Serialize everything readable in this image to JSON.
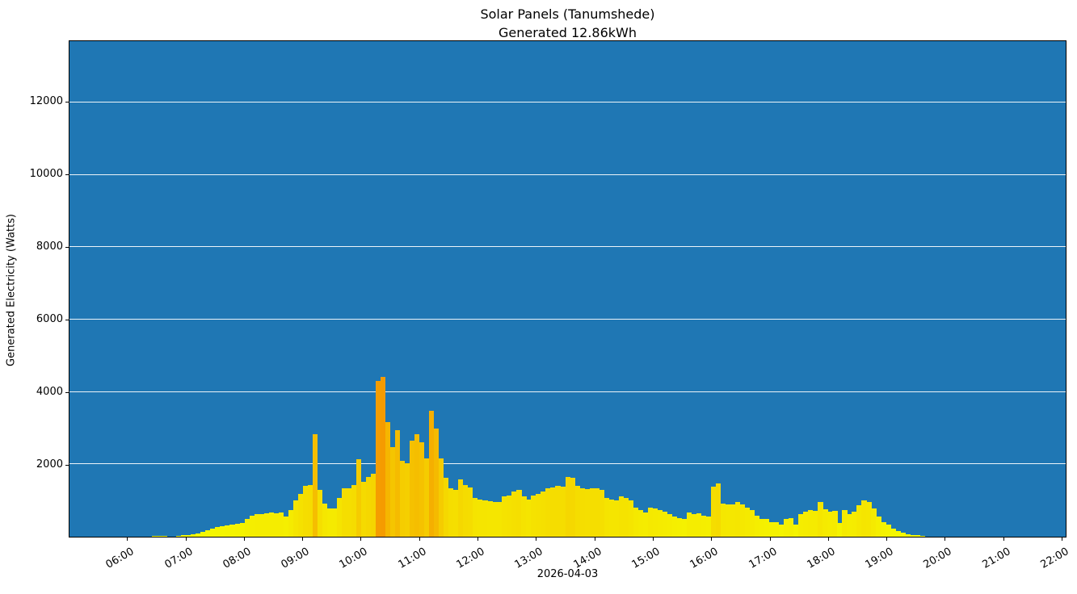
{
  "title": {
    "line1": "Solar Panels (Tanumshede)",
    "line2": "Generated 12.86kWh"
  },
  "chart_data": {
    "type": "bar",
    "title": "Solar Panels (Tanumshede) — Generated 12.86kWh",
    "xlabel": "2026-04-03",
    "ylabel": "Generated Electricity (Watts)",
    "x_start_hour": 5.0,
    "x_end_hour": 22.083,
    "interval_minutes": 5,
    "x_ticks": [
      {
        "hour": 6,
        "label": "06:00"
      },
      {
        "hour": 7,
        "label": "07:00"
      },
      {
        "hour": 8,
        "label": "08:00"
      },
      {
        "hour": 9,
        "label": "09:00"
      },
      {
        "hour": 10,
        "label": "10:00"
      },
      {
        "hour": 11,
        "label": "11:00"
      },
      {
        "hour": 12,
        "label": "12:00"
      },
      {
        "hour": 13,
        "label": "13:00"
      },
      {
        "hour": 14,
        "label": "14:00"
      },
      {
        "hour": 15,
        "label": "15:00"
      },
      {
        "hour": 16,
        "label": "16:00"
      },
      {
        "hour": 17,
        "label": "17:00"
      },
      {
        "hour": 18,
        "label": "18:00"
      },
      {
        "hour": 19,
        "label": "19:00"
      },
      {
        "hour": 20,
        "label": "20:00"
      },
      {
        "hour": 21,
        "label": "21:00"
      },
      {
        "hour": 22,
        "label": "22:00"
      }
    ],
    "y_ticks": [
      2000,
      4000,
      6000,
      8000,
      10000,
      12000
    ],
    "ylim": [
      0,
      13690
    ],
    "grid": "horizontal-white",
    "legend": "none",
    "colors": {
      "plot_background": "#1f77b4",
      "grid": "#ffffff",
      "bar_low": "#f5fb00",
      "bar_high": "#f59900",
      "color_vmax": 4500,
      "spine": "#000000"
    },
    "series": [
      {
        "name": "Generated Electricity (Watts), 5-min intervals starting 05:00",
        "values": [
          0,
          0,
          0,
          0,
          0,
          0,
          0,
          0,
          0,
          0,
          0,
          0,
          0,
          0,
          0,
          0,
          0,
          25,
          30,
          25,
          0,
          0,
          30,
          40,
          45,
          60,
          90,
          130,
          175,
          220,
          265,
          290,
          310,
          330,
          350,
          375,
          490,
          575,
          620,
          620,
          640,
          660,
          640,
          660,
          550,
          730,
          995,
          1180,
          1400,
          1437,
          2822,
          1290,
          921,
          789,
          774,
          1069,
          1327,
          1349,
          1437,
          2137,
          1511,
          1658,
          1747,
          4310,
          4420,
          3169,
          2469,
          2948,
          2100,
          2027,
          2653,
          2822,
          2616,
          2159,
          3486,
          2985,
          2174,
          1621,
          1327,
          1290,
          1585,
          1437,
          1363,
          1069,
          1032,
          995,
          980,
          958,
          958,
          1106,
          1143,
          1253,
          1290,
          1106,
          1032,
          1143,
          1180,
          1253,
          1327,
          1363,
          1400,
          1380,
          1650,
          1620,
          1400,
          1327,
          1305,
          1327,
          1342,
          1290,
          1070,
          1030,
          1000,
          1105,
          1080,
          995,
          810,
          740,
          680,
          810,
          790,
          740,
          700,
          630,
          560,
          510,
          480,
          660,
          620,
          640,
          590,
          550,
          1380,
          1475,
          920,
          890,
          900,
          958,
          890,
          800,
          740,
          590,
          500,
          480,
          410,
          405,
          330,
          480,
          515,
          330,
          630,
          700,
          740,
          720,
          950,
          760,
          700,
          720,
          370,
          740,
          630,
          700,
          870,
          1000,
          960,
          770,
          550,
          400,
          330,
          220,
          150,
          110,
          75,
          50,
          35,
          20,
          0,
          0,
          0,
          0,
          0,
          0,
          0,
          0,
          0,
          0,
          0,
          0,
          0,
          0,
          0,
          0,
          0,
          0,
          0,
          0,
          0,
          0,
          0,
          0,
          0,
          0,
          0,
          0
        ]
      }
    ]
  }
}
